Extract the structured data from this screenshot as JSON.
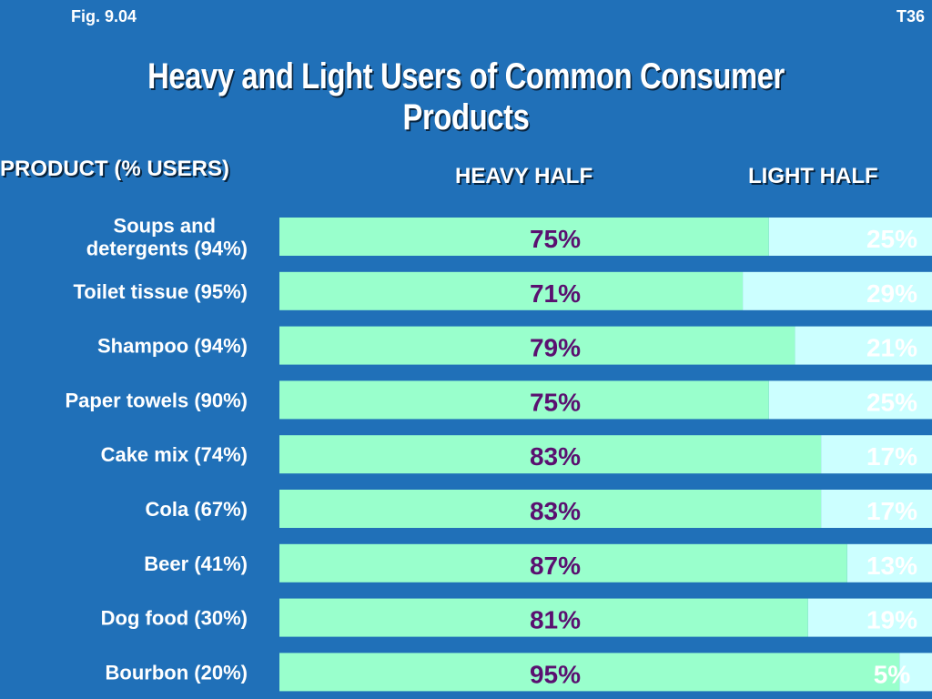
{
  "figure_label": "Fig. 9.04",
  "slide_id": "T36",
  "title": "Heavy and Light Users of Common Consumer Products",
  "headers": {
    "product": "PRODUCT (% USERS)",
    "heavy": "HEAVY HALF",
    "light": "LIGHT HALF"
  },
  "colors": {
    "background": "#2070b8",
    "heavy_bar": "#99ffcc",
    "light_bar": "#ccffff",
    "heavy_text": "#5a1070",
    "light_text": "#ffffff"
  },
  "chart_data": {
    "type": "bar",
    "orientation": "horizontal-stacked",
    "title": "Heavy and Light Users of Common Consumer Products",
    "categories": [
      "Soups and detergents (94%)",
      "Toilet tissue (95%)",
      "Shampoo (94%)",
      "Paper towels (90%)",
      "Cake mix (74%)",
      "Cola (67%)",
      "Beer (41%)",
      "Dog food (30%)",
      "Bourbon (20%)"
    ],
    "category_lines": [
      [
        "Soups and",
        "detergents (94%)"
      ],
      [
        "Toilet tissue (95%)"
      ],
      [
        "Shampoo (94%)"
      ],
      [
        "Paper towels (90%)"
      ],
      [
        "Cake mix (74%)"
      ],
      [
        "Cola (67%)"
      ],
      [
        "Beer (41%)"
      ],
      [
        "Dog food (30%)"
      ],
      [
        "Bourbon (20%)"
      ]
    ],
    "series": [
      {
        "name": "HEAVY HALF",
        "values": [
          75,
          71,
          79,
          75,
          83,
          83,
          87,
          81,
          95
        ],
        "labels": [
          "75%",
          "71%",
          "79%",
          "75%",
          "83%",
          "83%",
          "87%",
          "81%",
          "95%"
        ]
      },
      {
        "name": "LIGHT HALF",
        "values": [
          25,
          29,
          21,
          25,
          17,
          17,
          13,
          19,
          5
        ],
        "labels": [
          "25%",
          "29%",
          "21%",
          "25%",
          "17%",
          "17%",
          "13%",
          "19%",
          "5%"
        ]
      }
    ],
    "xlim": [
      0,
      100
    ],
    "grid": false
  }
}
